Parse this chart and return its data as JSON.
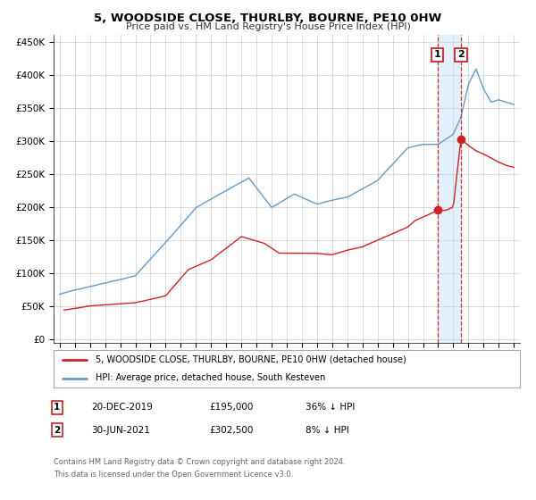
{
  "title": "5, WOODSIDE CLOSE, THURLBY, BOURNE, PE10 0HW",
  "subtitle": "Price paid vs. HM Land Registry's House Price Index (HPI)",
  "ylabel_ticks": [
    "£0",
    "£50K",
    "£100K",
    "£150K",
    "£200K",
    "£250K",
    "£300K",
    "£350K",
    "£400K",
    "£450K"
  ],
  "ytick_vals": [
    0,
    50000,
    100000,
    150000,
    200000,
    250000,
    300000,
    350000,
    400000,
    450000
  ],
  "xlim": [
    1994.6,
    2025.4
  ],
  "ylim": [
    -5000,
    460000
  ],
  "hpi_color": "#6699cc",
  "price_color": "#cc2222",
  "marker_color": "#cc2222",
  "vline_color": "#cc3333",
  "shade_color": "#ddeeff",
  "grid_color": "#cccccc",
  "legend_label_price": "5, WOODSIDE CLOSE, THURLBY, BOURNE, PE10 0HW (detached house)",
  "legend_label_hpi": "HPI: Average price, detached house, South Kesteven",
  "annotation1_date": "20-DEC-2019",
  "annotation1_price": "£195,000",
  "annotation1_pct": "36% ↓ HPI",
  "annotation1_year": 2019.96,
  "annotation1_price_val": 195000,
  "annotation2_date": "30-JUN-2021",
  "annotation2_price": "£302,500",
  "annotation2_pct": "8% ↓ HPI",
  "annotation2_year": 2021.5,
  "annotation2_price_val": 302500,
  "footnote1": "Contains HM Land Registry data © Crown copyright and database right 2024.",
  "footnote2": "This data is licensed under the Open Government Licence v3.0."
}
